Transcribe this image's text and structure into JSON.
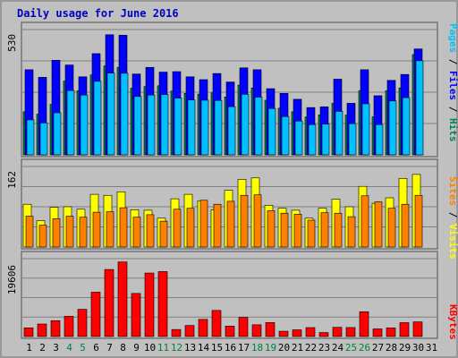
{
  "title": "Daily usage for June 2016",
  "colors": {
    "hits": "#00805c",
    "files": "#0000ff",
    "pages": "#00c0ff",
    "visits": "#ffff00",
    "sites": "#ff8000",
    "kbytes": "#ff0000",
    "weekend_label": "#008040",
    "weekday_label": "#000000",
    "separator": "#000000"
  },
  "chart_data": [
    {
      "type": "bar",
      "panel": "top",
      "y_max_label": "530",
      "ylim": [
        0,
        530
      ],
      "categories": [
        "1",
        "2",
        "3",
        "4",
        "5",
        "6",
        "7",
        "8",
        "9",
        "10",
        "11",
        "12",
        "13",
        "14",
        "15",
        "16",
        "17",
        "18",
        "19",
        "20",
        "21",
        "22",
        "23",
        "24",
        "25",
        "26",
        "27",
        "28",
        "29",
        "30",
        "31"
      ],
      "weekend": [
        "4",
        "5",
        "11",
        "12",
        "18",
        "19",
        "25",
        "26"
      ],
      "legend": [
        "Pages",
        "/",
        "Files",
        "/",
        "Hits"
      ],
      "series": [
        {
          "name": "Hits",
          "values": [
            182,
            172,
            213,
            312,
            271,
            338,
            376,
            370,
            282,
            289,
            292,
            270,
            260,
            257,
            262,
            245,
            295,
            283,
            231,
            197,
            182,
            160,
            169,
            218,
            168,
            271,
            161,
            271,
            283,
            424,
            0
          ]
        },
        {
          "name": "Files",
          "values": [
            360,
            328,
            400,
            380,
            330,
            428,
            508,
            506,
            342,
            370,
            350,
            352,
            330,
            318,
            344,
            308,
            368,
            360,
            280,
            260,
            235,
            200,
            203,
            320,
            218,
            360,
            250,
            315,
            340,
            448,
            0
          ]
        },
        {
          "name": "Pages",
          "values": [
            148,
            135,
            178,
            272,
            253,
            311,
            346,
            345,
            247,
            253,
            255,
            240,
            232,
            231,
            230,
            204,
            256,
            244,
            196,
            162,
            143,
            128,
            130,
            184,
            132,
            216,
            128,
            228,
            242,
            398,
            0
          ]
        }
      ]
    },
    {
      "type": "bar",
      "panel": "middle",
      "y_max_label": "162",
      "ylim": [
        0,
        162
      ],
      "legend": [
        "Sites",
        "/",
        "Visits"
      ],
      "series": [
        {
          "name": "Visits",
          "values": [
            86,
            53,
            80,
            81,
            76,
            106,
            104,
            111,
            75,
            74,
            58,
            97,
            106,
            93,
            75,
            114,
            136,
            139,
            84,
            78,
            74,
            58,
            78,
            96,
            81,
            122,
            88,
            99,
            138,
            146,
            0
          ]
        },
        {
          "name": "Sites",
          "values": [
            62,
            44,
            57,
            62,
            60,
            70,
            71,
            79,
            60,
            65,
            52,
            76,
            78,
            94,
            86,
            92,
            104,
            105,
            73,
            68,
            66,
            54,
            69,
            68,
            61,
            103,
            91,
            78,
            86,
            104,
            0
          ]
        }
      ]
    },
    {
      "type": "bar",
      "panel": "bottom",
      "y_max_label": "19606",
      "ylim": [
        0,
        19606
      ],
      "legend": [
        "KBytes"
      ],
      "series": [
        {
          "name": "KBytes",
          "values": [
            2188,
            3152,
            3990,
            5093,
            6850,
            11166,
            16878,
            18773,
            10852,
            15983,
            16351,
            1766,
            2773,
            4313,
            6578,
            2618,
            4808,
            2957,
            3519,
            1334,
            1687,
            2248,
            997,
            2320,
            2264,
            6253,
            1924,
            2164,
            3497,
            3691,
            0
          ]
        }
      ]
    }
  ]
}
